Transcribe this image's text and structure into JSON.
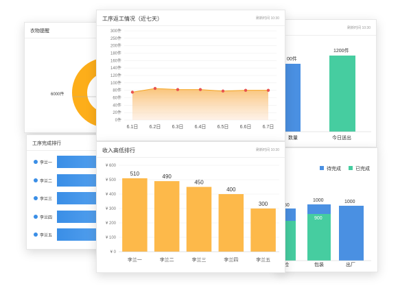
{
  "left_top": {
    "title": "衣物提醒",
    "donut_label": "6000件"
  },
  "left_bottom": {
    "title": "工序完成排行",
    "rows": [
      "李兰一",
      "李兰二",
      "李兰三",
      "李兰四",
      "李兰五"
    ]
  },
  "right_top": {
    "time": "刷新时间 10:30",
    "bar1_label": "00件",
    "bar2_label": "1200件",
    "cat1": "数量",
    "cat2": "今日送出"
  },
  "right_bottom": {
    "legend": [
      "待完成",
      "已完成"
    ],
    "colors": {
      "pending": "#4a90e2",
      "done": "#46cda0"
    },
    "labels": {
      "a": "50",
      "b_top": "1000",
      "b_mid": "900",
      "c": "1000"
    },
    "cats": [
      "检",
      "包装",
      "出厂"
    ]
  },
  "center_top": {
    "title": "工序返工情况（近七天）",
    "time": "刷新时间 10:30"
  },
  "center_bottom": {
    "title": "收入高低排行",
    "time": "刷新时间 10:30"
  },
  "chart_data": [
    {
      "type": "area",
      "title": "工序返工情况（近七天）",
      "categories": [
        "6.1日",
        "6.2日",
        "6.3日",
        "6.4日",
        "6.5日",
        "6.6日",
        "6.7日"
      ],
      "values": [
        75,
        85,
        82,
        82,
        78,
        80,
        80
      ],
      "y_ticks": [
        "0件",
        "20件",
        "40件",
        "60件",
        "80件",
        "100件",
        "120件",
        "140件",
        "160件",
        "180件",
        "200件",
        "250件",
        "300件"
      ],
      "ylim": [
        0,
        300
      ],
      "color": "#f7b14c"
    },
    {
      "type": "bar",
      "title": "收入高低排行",
      "categories": [
        "李兰一",
        "李兰二",
        "李兰三",
        "李兰四",
        "李兰五"
      ],
      "values": [
        510,
        490,
        450,
        400,
        300
      ],
      "y_ticks": [
        "¥ 0",
        "¥ 100",
        "¥ 200",
        "¥ 300",
        "¥ 400",
        "¥ 500",
        "¥ 600"
      ],
      "ylim": [
        0,
        600
      ],
      "color": "#fdb94a"
    }
  ]
}
